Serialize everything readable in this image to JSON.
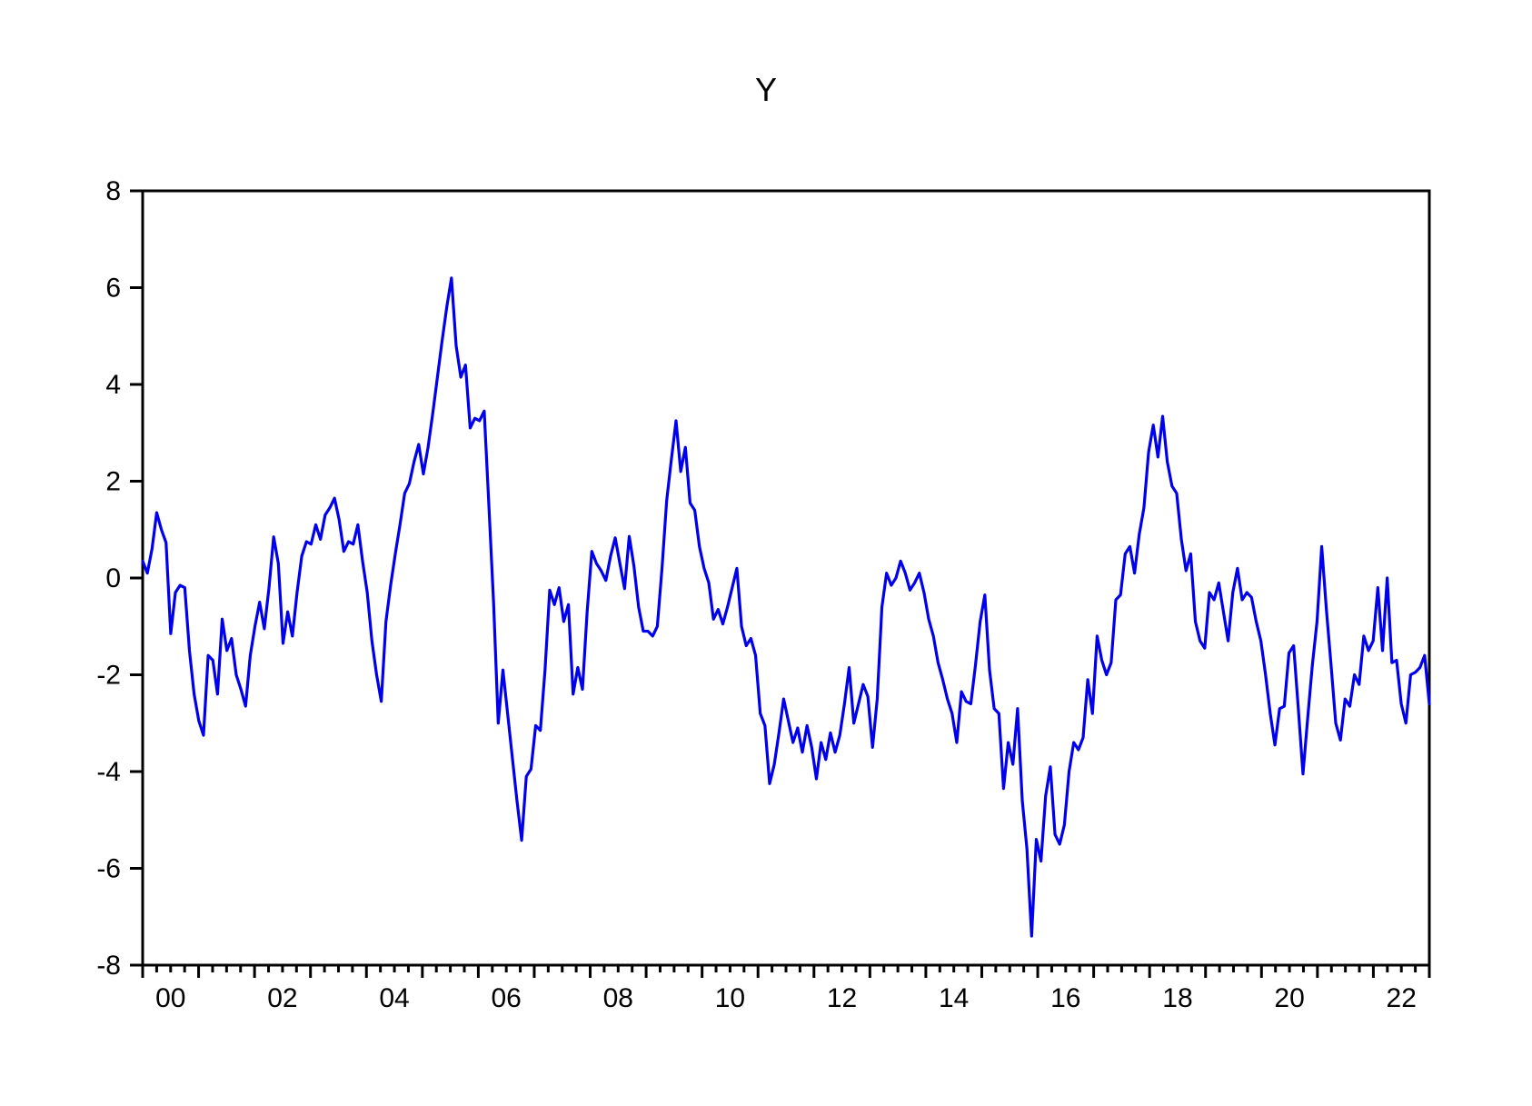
{
  "title": "Y",
  "chart_data": {
    "type": "line",
    "series_name": "Y",
    "frequency": "monthly",
    "x_start_label": "2000M01",
    "x_end_label": "2022M12",
    "x_tick_labels": [
      "00",
      "02",
      "04",
      "06",
      "08",
      "10",
      "12",
      "14",
      "16",
      "18",
      "20",
      "22"
    ],
    "ylim": [
      -8,
      8
    ],
    "y_ticks": [
      8,
      6,
      4,
      2,
      0,
      -2,
      -4,
      -6,
      -8
    ],
    "grid": "off",
    "legend": "none",
    "line_color": "#0000EE",
    "axis_color": "#000000",
    "background_color": "#ffffff",
    "values": [
      0.35,
      0.1,
      0.6,
      1.35,
      1.0,
      0.73,
      -1.15,
      -0.3,
      -0.15,
      -0.2,
      -1.5,
      -2.4,
      -2.95,
      -3.25,
      -1.6,
      -1.7,
      -2.4,
      -0.85,
      -1.5,
      -1.25,
      -2.0,
      -2.3,
      -2.65,
      -1.6,
      -1.0,
      -0.5,
      -1.05,
      -0.2,
      0.85,
      0.3,
      -1.35,
      -0.7,
      -1.2,
      -0.3,
      0.45,
      0.75,
      0.7,
      1.1,
      0.8,
      1.3,
      1.45,
      1.65,
      1.2,
      0.55,
      0.75,
      0.7,
      1.1,
      0.35,
      -0.3,
      -1.3,
      -2.0,
      -2.55,
      -0.9,
      -0.15,
      0.5,
      1.1,
      1.75,
      1.95,
      2.4,
      2.76,
      2.15,
      2.7,
      3.4,
      4.15,
      4.9,
      5.6,
      6.2,
      4.8,
      4.15,
      4.4,
      3.1,
      3.3,
      3.25,
      3.45,
      1.5,
      -0.5,
      -3.0,
      -1.9,
      -2.8,
      -3.7,
      -4.6,
      -5.42,
      -4.1,
      -3.95,
      -3.05,
      -3.15,
      -1.9,
      -0.25,
      -0.55,
      -0.2,
      -0.9,
      -0.55,
      -2.4,
      -1.85,
      -2.3,
      -0.7,
      0.55,
      0.3,
      0.15,
      -0.05,
      0.45,
      0.83,
      0.3,
      -0.22,
      0.86,
      0.25,
      -0.6,
      -1.1,
      -1.1,
      -1.2,
      -1.0,
      0.2,
      1.6,
      2.45,
      3.25,
      2.2,
      2.7,
      1.55,
      1.4,
      0.65,
      0.2,
      -0.1,
      -0.85,
      -0.65,
      -0.95,
      -0.6,
      -0.2,
      0.2,
      -1.0,
      -1.4,
      -1.25,
      -1.6,
      -2.8,
      -3.05,
      -4.25,
      -3.85,
      -3.2,
      -2.5,
      -2.95,
      -3.4,
      -3.1,
      -3.6,
      -3.05,
      -3.5,
      -4.15,
      -3.4,
      -3.75,
      -3.2,
      -3.6,
      -3.25,
      -2.6,
      -1.85,
      -3.0,
      -2.6,
      -2.2,
      -2.45,
      -3.5,
      -2.5,
      -0.6,
      0.1,
      -0.15,
      0.0,
      0.35,
      0.1,
      -0.25,
      -0.1,
      0.1,
      -0.3,
      -0.85,
      -1.2,
      -1.75,
      -2.1,
      -2.5,
      -2.8,
      -3.4,
      -2.35,
      -2.55,
      -2.6,
      -1.8,
      -0.9,
      -0.35,
      -1.9,
      -2.7,
      -2.8,
      -4.35,
      -3.4,
      -3.85,
      -2.7,
      -4.6,
      -5.6,
      -7.4,
      -5.4,
      -5.85,
      -4.5,
      -3.9,
      -5.3,
      -5.5,
      -5.1,
      -4.0,
      -3.4,
      -3.55,
      -3.3,
      -2.1,
      -2.8,
      -1.2,
      -1.7,
      -2.0,
      -1.75,
      -0.45,
      -0.35,
      0.5,
      0.65,
      0.1,
      0.9,
      1.45,
      2.6,
      3.16,
      2.5,
      3.34,
      2.4,
      1.9,
      1.75,
      0.8,
      0.15,
      0.5,
      -0.9,
      -1.3,
      -1.45,
      -0.3,
      -0.45,
      -0.1,
      -0.7,
      -1.3,
      -0.3,
      0.2,
      -0.45,
      -0.3,
      -0.4,
      -0.9,
      -1.3,
      -2.0,
      -2.8,
      -3.45,
      -2.7,
      -2.65,
      -1.55,
      -1.4,
      -2.7,
      -4.05,
      -2.9,
      -1.8,
      -0.9,
      0.65,
      -0.65,
      -1.8,
      -3.0,
      -3.35,
      -2.5,
      -2.65,
      -2.0,
      -2.2,
      -1.2,
      -1.5,
      -1.3,
      -0.2,
      -1.5,
      0.0,
      -1.75,
      -1.7,
      -2.6,
      -3.0,
      -2.0,
      -1.95,
      -1.85,
      -1.6,
      -2.6
    ]
  }
}
